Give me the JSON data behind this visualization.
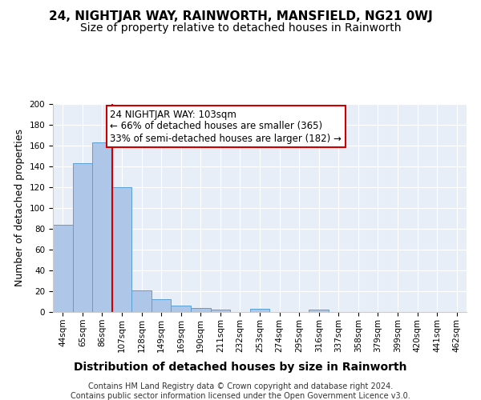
{
  "title": "24, NIGHTJAR WAY, RAINWORTH, MANSFIELD, NG21 0WJ",
  "subtitle": "Size of property relative to detached houses in Rainworth",
  "xlabel": "Distribution of detached houses by size in Rainworth",
  "ylabel": "Number of detached properties",
  "footer_line1": "Contains HM Land Registry data © Crown copyright and database right 2024.",
  "footer_line2": "Contains public sector information licensed under the Open Government Licence v3.0.",
  "bar_labels": [
    "44sqm",
    "65sqm",
    "86sqm",
    "107sqm",
    "128sqm",
    "149sqm",
    "169sqm",
    "190sqm",
    "211sqm",
    "232sqm",
    "253sqm",
    "274sqm",
    "295sqm",
    "316sqm",
    "337sqm",
    "358sqm",
    "379sqm",
    "399sqm",
    "420sqm",
    "441sqm",
    "462sqm"
  ],
  "bar_values": [
    84,
    143,
    163,
    120,
    21,
    12,
    6,
    4,
    2,
    0,
    3,
    0,
    0,
    2,
    0,
    0,
    0,
    0,
    0,
    0,
    0
  ],
  "bar_color": "#aec6e8",
  "bar_edge_color": "#5a9fd4",
  "vline_x": 2.5,
  "vline_color": "#cc0000",
  "annotation_text": "24 NIGHTJAR WAY: 103sqm\n← 66% of detached houses are smaller (365)\n33% of semi-detached houses are larger (182) →",
  "annotation_box_facecolor": "#ffffff",
  "annotation_box_edgecolor": "#cc0000",
  "ylim": [
    0,
    200
  ],
  "yticks": [
    0,
    20,
    40,
    60,
    80,
    100,
    120,
    140,
    160,
    180,
    200
  ],
  "plot_bg_color": "#e8eef8",
  "title_fontsize": 11,
  "subtitle_fontsize": 10,
  "ylabel_fontsize": 9,
  "xlabel_fontsize": 10,
  "tick_fontsize": 7.5,
  "footer_fontsize": 7,
  "annotation_fontsize": 8.5
}
